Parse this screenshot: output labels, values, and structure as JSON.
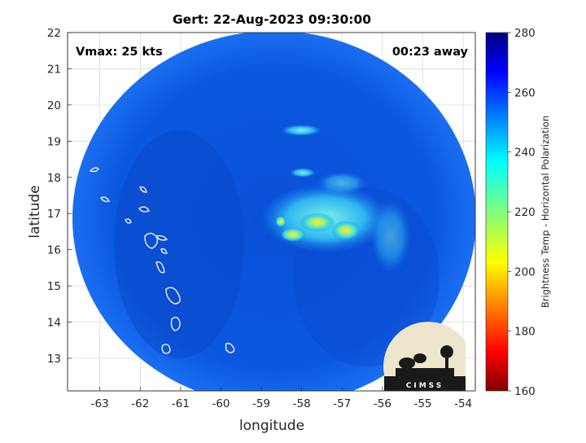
{
  "title": "Gert: 22-Aug-2023 09:30:00",
  "annotations": {
    "vmax": "Vmax: 25 kts",
    "time_away": "00:23 away"
  },
  "axes": {
    "xlabel": "longitude",
    "ylabel": "latitude",
    "x_ticks": [
      "-63",
      "-62",
      "-61",
      "-60",
      "-59",
      "-58",
      "-57",
      "-56",
      "-55",
      "-54"
    ],
    "y_ticks": [
      "13",
      "14",
      "15",
      "16",
      "17",
      "18",
      "19",
      "20",
      "21",
      "22"
    ],
    "xlim": [
      -63.8,
      -53.7
    ],
    "ylim": [
      12.1,
      22.0
    ],
    "grid": true
  },
  "colorbar": {
    "label": "Brightness Temp - Horizontal Polarization",
    "ticks": [
      "160",
      "180",
      "200",
      "220",
      "240",
      "260",
      "280"
    ],
    "range": [
      160,
      280
    ],
    "colormap": "jet"
  },
  "logo": {
    "text": "CIMSS"
  },
  "colors": {
    "swath_base": "#0a52d8",
    "cold_core": "#f4e23a",
    "land_outline": "#ffffff"
  }
}
